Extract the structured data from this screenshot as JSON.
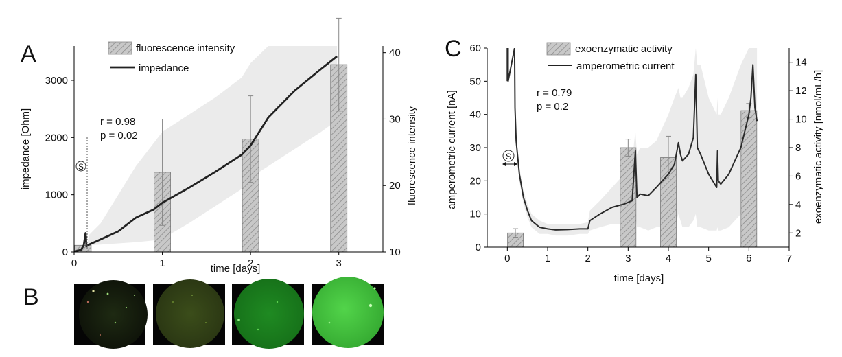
{
  "panels": {
    "a": {
      "letter": "A",
      "stimulus_marker": "S"
    },
    "b": {
      "letter": "B",
      "microscopy_images": [
        "day-0",
        "day-1",
        "day-2",
        "day-3"
      ]
    },
    "c": {
      "letter": "C",
      "stimulus_marker": "S"
    }
  },
  "colors": {
    "line": "#222222",
    "bar_fill": "#c6c6c6",
    "bar_hatch": "#8c8c8c",
    "band": "#ebebeb",
    "fluorescence_green": "#2fa52f"
  },
  "chart_data": [
    {
      "type": "bar+line",
      "panel": "A",
      "xlabel": "time [days]",
      "ylabel": "impedance [Ohm]",
      "y2label": "fluorescence intensity",
      "xlim": [
        0,
        3.5
      ],
      "ylim": [
        0,
        3600
      ],
      "y2lim": [
        10,
        41
      ],
      "xticks": [
        0,
        1,
        2,
        3
      ],
      "yticks": [
        0,
        1000,
        2000,
        3000
      ],
      "y2ticks": [
        10,
        20,
        30,
        40
      ],
      "legend": {
        "placement": "top-center",
        "bar_label": "fluorescence intensity",
        "line_label": "impedance"
      },
      "annotation": [
        "r = 0.98",
        "p = 0.02"
      ],
      "bars": {
        "name": "fluorescence intensity",
        "x": [
          0.1,
          1.0,
          2.0,
          3.0
        ],
        "values": [
          11,
          22,
          27,
          38.2
        ],
        "errors": [
          0,
          8,
          6.5,
          7
        ]
      },
      "line": {
        "name": "impedance",
        "x": [
          0,
          0.08,
          0.11,
          0.13,
          0.14,
          0.17,
          0.3,
          0.5,
          0.7,
          0.9,
          1.0,
          1.3,
          1.6,
          1.9,
          2.0,
          2.2,
          2.5,
          2.8,
          2.98
        ],
        "y": [
          5,
          40,
          120,
          330,
          100,
          130,
          220,
          360,
          600,
          740,
          860,
          1120,
          1400,
          1700,
          1860,
          2350,
          2820,
          3200,
          3420
        ],
        "band_upper": [
          5,
          40,
          120,
          330,
          100,
          300,
          500,
          1000,
          1500,
          1900,
          2100,
          2400,
          2700,
          3050,
          3300,
          3600,
          3600,
          3600,
          3600
        ],
        "band_lower": [
          5,
          40,
          120,
          330,
          100,
          120,
          130,
          150,
          170,
          200,
          230,
          500,
          800,
          1100,
          1300,
          1500,
          1800,
          2100,
          2300
        ]
      }
    },
    {
      "type": "bar+line",
      "panel": "C",
      "xlabel": "time [days]",
      "ylabel": "amperometric current [nA]",
      "y2label": "exoenzymatic activity [nmol/mL/h]",
      "xlim": [
        -0.5,
        7
      ],
      "ylim": [
        0,
        60
      ],
      "y2lim": [
        1,
        15
      ],
      "xticks": [
        0,
        1,
        2,
        3,
        4,
        5,
        6,
        7
      ],
      "yticks": [
        0,
        10,
        20,
        30,
        40,
        50,
        60
      ],
      "y2ticks": [
        2,
        4,
        6,
        8,
        10,
        12,
        14
      ],
      "legend": {
        "placement": "top-center",
        "bar_label": "exoenzymatic activity",
        "line_label": "amperometric current"
      },
      "annotation": [
        "r = 0.79",
        "p = 0.2"
      ],
      "bars": {
        "name": "exoenzymatic activity",
        "x": [
          0.2,
          3.0,
          4.0,
          6.0
        ],
        "values": [
          2,
          8,
          7.3,
          10.6
        ],
        "errors": [
          0.3,
          0.6,
          1.5,
          0.5
        ]
      },
      "line": {
        "name": "amperometric current",
        "x": [
          0.0,
          0.0,
          0.02,
          0.02,
          0.18,
          0.19,
          0.22,
          0.3,
          0.4,
          0.5,
          0.6,
          0.8,
          1.0,
          1.2,
          1.5,
          1.8,
          2.0,
          2.05,
          2.3,
          2.6,
          2.9,
          3.1,
          3.18,
          3.22,
          3.3,
          3.5,
          3.7,
          3.85,
          4.0,
          4.15,
          4.25,
          4.3,
          4.35,
          4.5,
          4.62,
          4.68,
          4.72,
          4.8,
          5.0,
          5.2,
          5.22,
          5.24,
          5.3,
          5.5,
          5.8,
          6.0,
          6.05,
          6.1,
          6.15,
          6.2
        ],
        "y": [
          50,
          60,
          60,
          50,
          60,
          42,
          32,
          22,
          15,
          11,
          8,
          6,
          5.5,
          5.2,
          5.3,
          5.5,
          5.5,
          8,
          10,
          12,
          13,
          14,
          29,
          15,
          16,
          15.5,
          18,
          20,
          22,
          25,
          31.5,
          28,
          26,
          28,
          33,
          52,
          30,
          28,
          22,
          18,
          29,
          20,
          19,
          22,
          30,
          40,
          45,
          55,
          42,
          38
        ],
        "band_upper": [
          50,
          60,
          60,
          50,
          60,
          42,
          34,
          24,
          17,
          13,
          10,
          8,
          7,
          7,
          7,
          7,
          7.5,
          11,
          14,
          18,
          22,
          26,
          35,
          28,
          30,
          30,
          32,
          36,
          40,
          45,
          48,
          45,
          45,
          48,
          52,
          60,
          55,
          55,
          45,
          40,
          45,
          40,
          40,
          45,
          55,
          60,
          60,
          60,
          60,
          60
        ],
        "band_lower": [
          50,
          60,
          60,
          50,
          60,
          42,
          30,
          20,
          13,
          9,
          6,
          4,
          4,
          3.5,
          3.5,
          4,
          4,
          5,
          6,
          7,
          7,
          6,
          10,
          6,
          6,
          5,
          6,
          6,
          5,
          6,
          10,
          8,
          6,
          6,
          8,
          10,
          6,
          6,
          5,
          5,
          6,
          5,
          5,
          6,
          10,
          22,
          30,
          40,
          32,
          28
        ]
      }
    }
  ]
}
